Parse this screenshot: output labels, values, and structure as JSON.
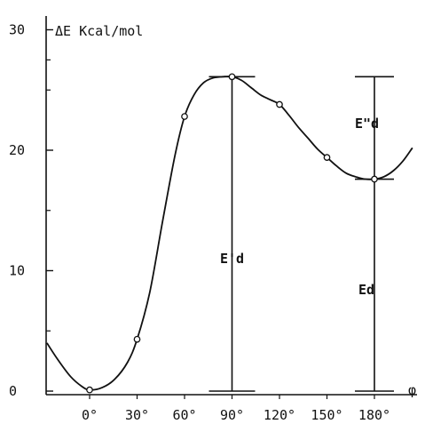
{
  "chart_data": {
    "type": "line",
    "title": "",
    "ylabel": "ΔE Kcal/mol",
    "xlabel": "φ",
    "x_tick_labels": [
      "0°",
      "30°",
      "60°",
      "90°",
      "120°",
      "150°",
      "180°"
    ],
    "x_ticks": [
      0,
      30,
      60,
      90,
      120,
      150,
      180
    ],
    "y_tick_labels": [
      "0",
      "10",
      "20",
      "30"
    ],
    "y_ticks": [
      0,
      10,
      20,
      30
    ],
    "xlim": [
      -30,
      205
    ],
    "ylim": [
      0,
      30
    ],
    "grid": false,
    "series": [
      {
        "points_x": [
          0,
          30,
          60,
          90,
          120,
          150,
          180
        ],
        "points_y": [
          0.1,
          4.3,
          22.8,
          26.1,
          23.8,
          19.4,
          17.6
        ],
        "curve_x": [
          -27,
          -20,
          -12,
          -5,
          0,
          8,
          16,
          24,
          30,
          38,
          46,
          54,
          60,
          66,
          72,
          78,
          84,
          90,
          96,
          102,
          108,
          114,
          120,
          126,
          132,
          138,
          144,
          150,
          156,
          162,
          168,
          174,
          180,
          186,
          192,
          198,
          204
        ],
        "curve_y": [
          4.0,
          2.6,
          1.2,
          0.4,
          0.1,
          0.3,
          1.0,
          2.4,
          4.3,
          8.2,
          14.0,
          19.6,
          22.8,
          24.6,
          25.6,
          26.0,
          26.1,
          26.1,
          25.8,
          25.2,
          24.6,
          24.2,
          23.8,
          22.9,
          21.9,
          21.0,
          20.1,
          19.4,
          18.7,
          18.1,
          17.8,
          17.6,
          17.6,
          17.8,
          18.3,
          19.1,
          20.2
        ]
      }
    ],
    "annotations": {
      "ed_prime": "E'd",
      "ed_double_prime": "E\"d",
      "ed": "Ed"
    },
    "reference_lines": {
      "ed_prime_top": 26.1,
      "ed_top": 26.1,
      "ed_double_prime_base": 17.6,
      "base": 0
    }
  }
}
